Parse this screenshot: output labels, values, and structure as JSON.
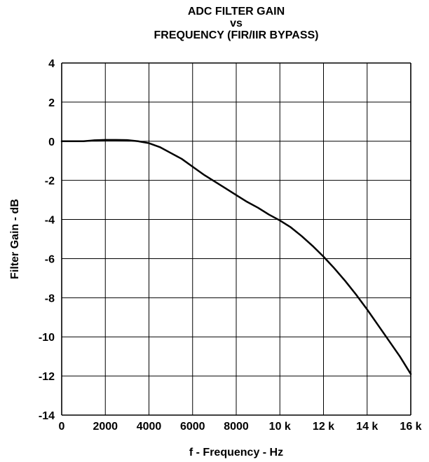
{
  "chart_data": {
    "type": "line",
    "title_lines": [
      "ADC FILTER GAIN",
      "vs",
      "FREQUENCY (FIR/IIR BYPASS)"
    ],
    "xlabel": "f - Frequency - Hz",
    "ylabel": "Filter Gain - dB",
    "xlim": [
      0,
      16000
    ],
    "ylim": [
      -14,
      4
    ],
    "x_ticks": [
      0,
      2000,
      4000,
      6000,
      8000,
      10000,
      12000,
      14000,
      16000
    ],
    "x_tick_labels": [
      "0",
      "2000",
      "4000",
      "6000",
      "8000",
      "10 k",
      "12 k",
      "14 k",
      "16 k"
    ],
    "y_ticks": [
      4,
      2,
      0,
      -2,
      -4,
      -6,
      -8,
      -10,
      -12,
      -14
    ],
    "y_tick_labels": [
      "4",
      "2",
      "0",
      "-2",
      "-4",
      "-6",
      "-8",
      "-10",
      "-12",
      "-14"
    ],
    "grid": true,
    "line_color": "#000000",
    "series": [
      {
        "x": [
          0,
          1000,
          1500,
          2000,
          2500,
          3000,
          3500,
          4000,
          4500,
          5000,
          5500,
          6000,
          6500,
          7000,
          7500,
          8000,
          8500,
          9000,
          9500,
          10000,
          10500,
          11000,
          11500,
          12000,
          12500,
          13000,
          13500,
          14000,
          14500,
          15000,
          15500,
          16000
        ],
        "y": [
          0,
          0,
          0.05,
          0.07,
          0.07,
          0.06,
          0.0,
          -0.1,
          -0.3,
          -0.6,
          -0.9,
          -1.3,
          -1.7,
          -2.05,
          -2.4,
          -2.75,
          -3.1,
          -3.4,
          -3.75,
          -4.05,
          -4.4,
          -4.85,
          -5.35,
          -5.9,
          -6.5,
          -7.15,
          -7.85,
          -8.6,
          -9.4,
          -10.2,
          -11.0,
          -11.9
        ]
      }
    ]
  }
}
